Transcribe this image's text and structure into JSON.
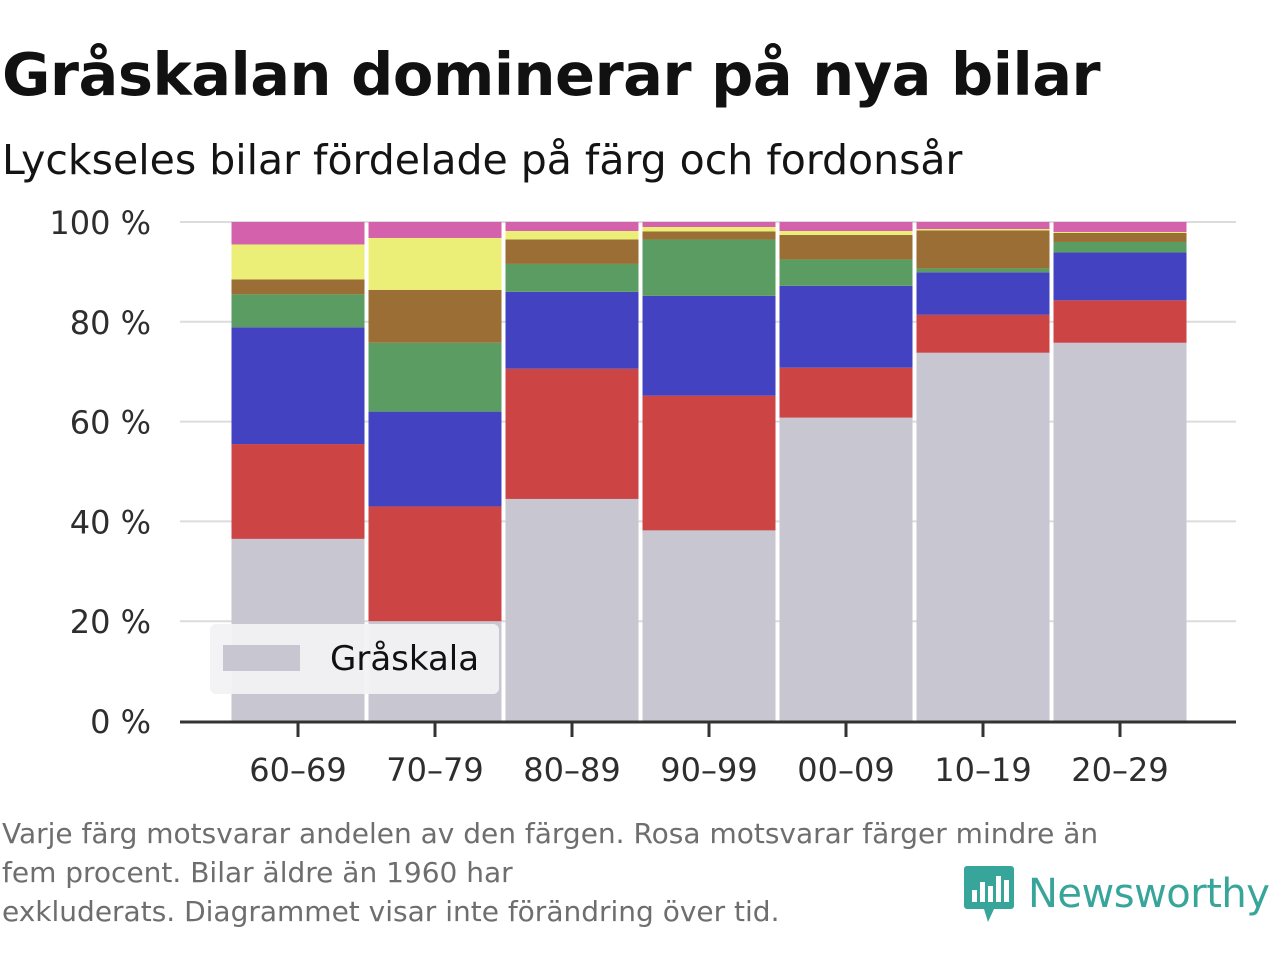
{
  "title": "Gråskalan dominerar på nya bilar",
  "subtitle": "Lyckseles bilar fördelade på färg och fordonsår",
  "footnote": {
    "line1": "Varje färg motsvarar andelen av den färgen. Rosa motsvarar färger mindre än",
    "line2": "fem procent. Bilar äldre än 1960 har",
    "line3": "exkluderats. Diagrammet visar inte förändring över tid."
  },
  "logo": {
    "text": "Newsworthy",
    "icon": "newsworthy-chart-bubble-icon",
    "color": "#38a59b"
  },
  "chart_data": {
    "type": "bar",
    "stacked": true,
    "categories": [
      "60–69",
      "70–79",
      "80–89",
      "90–99",
      "00–09",
      "10–19",
      "20–29"
    ],
    "y_ticks": [
      "0 %",
      "20 %",
      "40 %",
      "60 %",
      "80 %",
      "100 %"
    ],
    "y_tick_values": [
      0,
      20,
      40,
      60,
      80,
      100
    ],
    "ylim": [
      0,
      100
    ],
    "grid": true,
    "legend": {
      "placement": "bottom-left",
      "entries": [
        "Gråskala"
      ]
    },
    "series": [
      {
        "name": "Gråskala",
        "color": "#c8c6d1",
        "values": [
          36.5,
          20,
          44.5,
          38.2,
          60.8,
          73.8,
          75.8
        ]
      },
      {
        "color": "#cc4444",
        "values": [
          19,
          23,
          26.1,
          27,
          10,
          7.6,
          8.5
        ]
      },
      {
        "color": "#4343c1",
        "values": [
          23.4,
          19,
          15.4,
          20,
          16.4,
          8.5,
          9.6
        ]
      },
      {
        "color": "#5a9c62",
        "values": [
          6.6,
          13.8,
          5.6,
          11.3,
          5.3,
          0.8,
          2.1
        ]
      },
      {
        "color": "#9a6e34",
        "values": [
          3,
          10.6,
          4.9,
          1.6,
          4.9,
          7.6,
          1.8
        ]
      },
      {
        "color": "#ebef78",
        "values": [
          7,
          10.4,
          1.7,
          0.9,
          0.8,
          0.3,
          0.2
        ]
      },
      {
        "color": "#d461ab",
        "values": [
          4.5,
          3.2,
          1.8,
          1,
          1.8,
          1.4,
          2
        ]
      }
    ]
  }
}
